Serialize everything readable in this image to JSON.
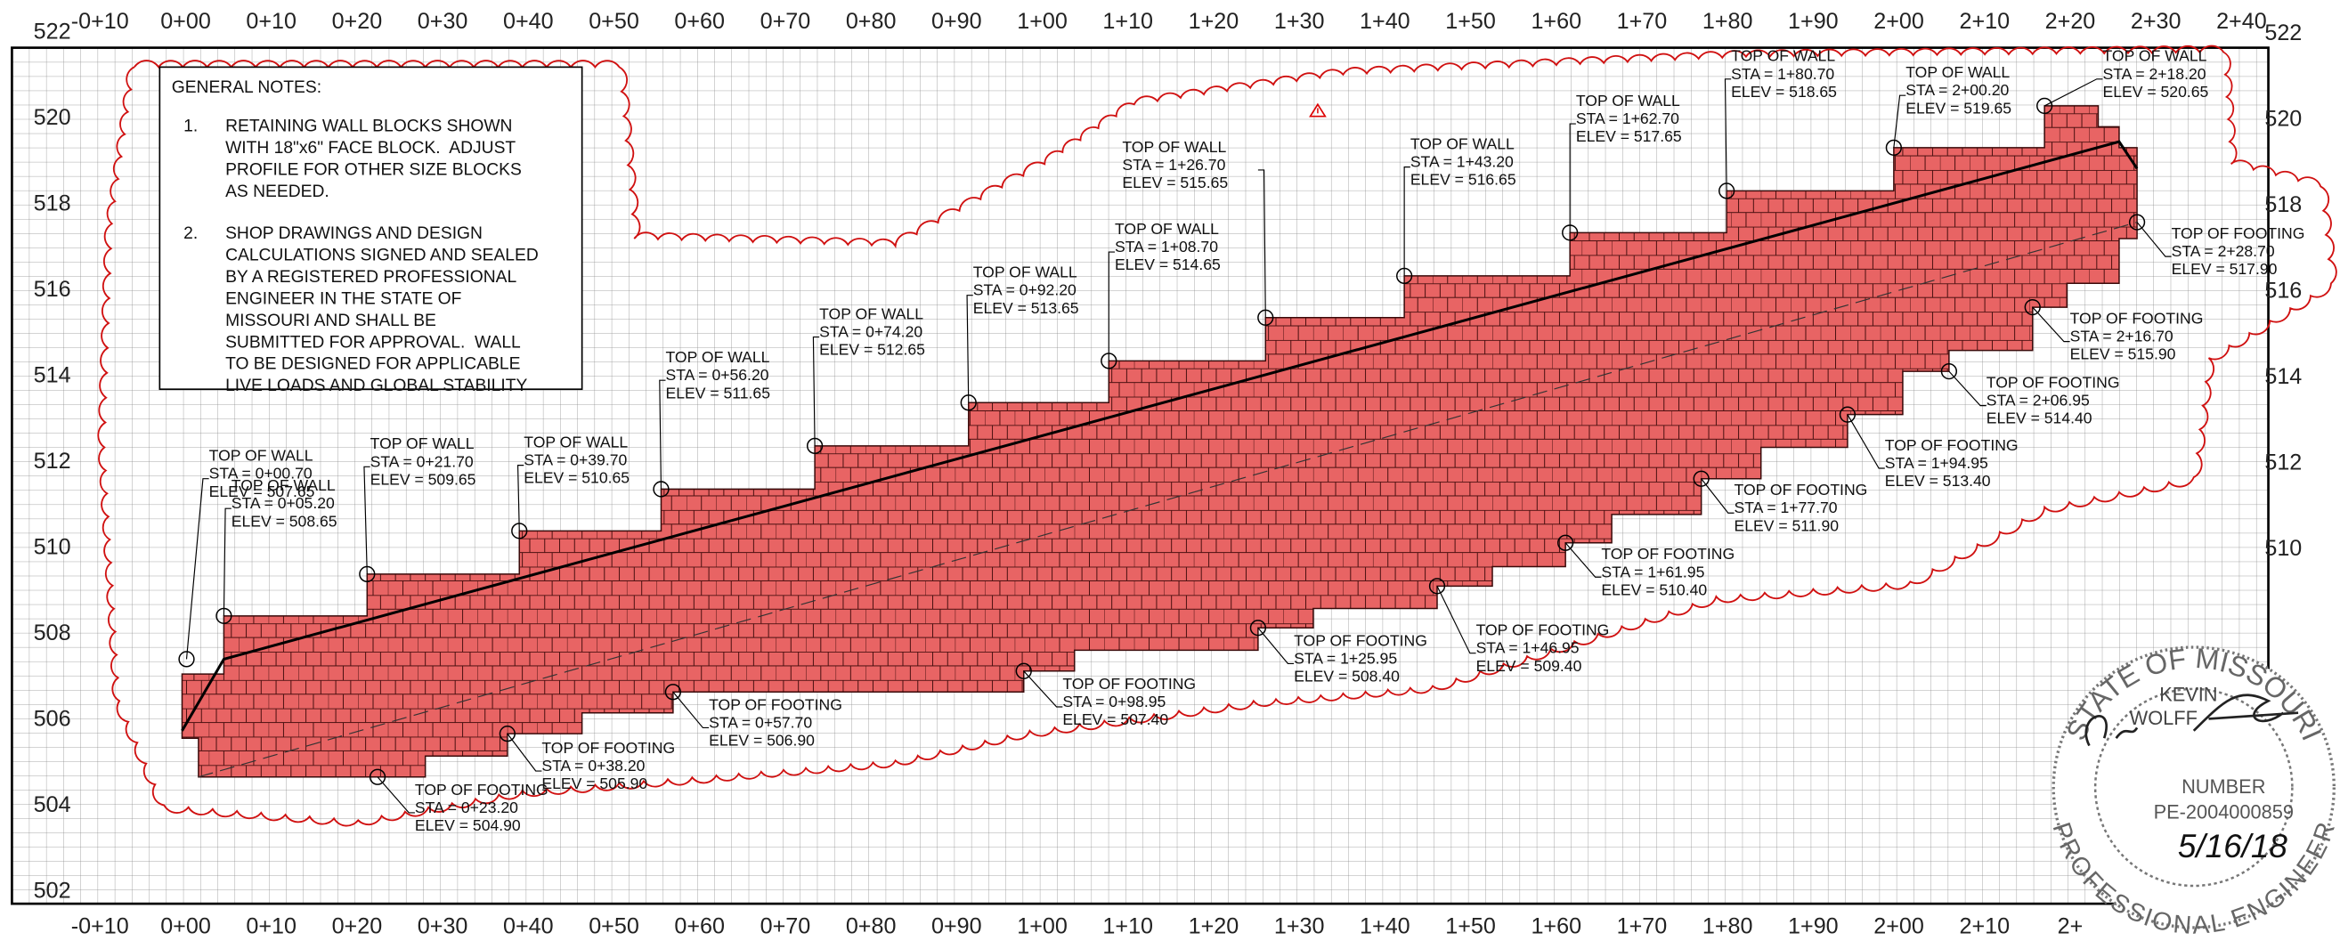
{
  "axes": {
    "stations_top": [
      "-0+10",
      "0+00",
      "0+10",
      "0+20",
      "0+30",
      "0+40",
      "0+50",
      "0+60",
      "0+70",
      "0+80",
      "0+90",
      "1+00",
      "1+10",
      "1+20",
      "1+30",
      "1+40",
      "1+50",
      "1+60",
      "1+70",
      "1+80",
      "1+90",
      "2+00",
      "2+10",
      "2+20",
      "2+30",
      "2+40"
    ],
    "stations_bottom": [
      "-0+10",
      "0+00",
      "0+10",
      "0+20",
      "0+30",
      "0+40",
      "0+50",
      "0+60",
      "0+70",
      "0+80",
      "0+90",
      "1+00",
      "1+10",
      "1+20",
      "1+30",
      "1+40",
      "1+50",
      "1+60",
      "1+70",
      "1+80",
      "1+90",
      "2+00",
      "2+10",
      "2+"
    ],
    "elevations_left": [
      "522",
      "520",
      "518",
      "516",
      "514",
      "512",
      "510",
      "508",
      "506",
      "504",
      "502"
    ],
    "elevations_right": [
      "522",
      "520",
      "518",
      "516",
      "514",
      "512",
      "510"
    ]
  },
  "general_notes": {
    "title": "GENERAL NOTES:",
    "notes": [
      {
        "number": "1.",
        "lines": [
          "RETAINING WALL BLOCKS SHOWN",
          "WITH 18\"x6\" FACE BLOCK.  ADJUST",
          "PROFILE FOR OTHER SIZE BLOCKS",
          "AS NEEDED."
        ]
      },
      {
        "number": "2.",
        "lines": [
          "SHOP DRAWINGS AND DESIGN",
          "CALCULATIONS SIGNED AND SEALED",
          "BY A REGISTERED PROFESSIONAL",
          "ENGINEER IN THE STATE OF",
          "MISSOURI AND SHALL BE",
          "SUBMITTED FOR APPROVAL.  WALL",
          "TO BE DESIGNED FOR APPLICABLE",
          "LIVE LOADS AND GLOBAL STABILITY"
        ]
      }
    ]
  },
  "top_of_wall": [
    {
      "title": "TOP OF WALL",
      "station": "STA = 0+00.70",
      "elevation": "ELEV = 507.65"
    },
    {
      "title": "TOP OF WALL",
      "station": "STA = 0+05.20",
      "elevation": "ELEV = 508.65"
    },
    {
      "title": "TOP OF WALL",
      "station": "STA = 0+21.70",
      "elevation": "ELEV = 509.65"
    },
    {
      "title": "TOP OF WALL",
      "station": "STA = 0+39.70",
      "elevation": "ELEV = 510.65"
    },
    {
      "title": "TOP OF WALL",
      "station": "STA = 0+56.20",
      "elevation": "ELEV = 511.65"
    },
    {
      "title": "TOP OF WALL",
      "station": "STA = 0+74.20",
      "elevation": "ELEV = 512.65"
    },
    {
      "title": "TOP OF WALL",
      "station": "STA = 0+92.20",
      "elevation": "ELEV = 513.65"
    },
    {
      "title": "TOP OF WALL",
      "station": "STA = 1+08.70",
      "elevation": "ELEV = 514.65"
    },
    {
      "title": "TOP OF WALL",
      "station": "STA = 1+26.70",
      "elevation": "ELEV = 515.65"
    },
    {
      "title": "TOP OF WALL",
      "station": "STA = 1+43.20",
      "elevation": "ELEV = 516.65"
    },
    {
      "title": "TOP OF WALL",
      "station": "STA = 1+62.70",
      "elevation": "ELEV = 517.65"
    },
    {
      "title": "TOP OF WALL",
      "station": "STA = 1+80.70",
      "elevation": "ELEV = 518.65"
    },
    {
      "title": "TOP OF WALL",
      "station": "STA = 2+00.20",
      "elevation": "ELEV = 519.65"
    },
    {
      "title": "TOP OF WALL",
      "station": "STA = 2+18.20",
      "elevation": "ELEV = 520.65"
    }
  ],
  "top_of_footing": [
    {
      "title": "TOP OF FOOTING",
      "station": "STA = 0+23.20",
      "elevation": "ELEV = 504.90"
    },
    {
      "title": "TOP OF FOOTING",
      "station": "STA = 0+38.20",
      "elevation": "ELEV = 505.90"
    },
    {
      "title": "TOP OF FOOTING",
      "station": "STA = 0+57.70",
      "elevation": "ELEV = 506.90"
    },
    {
      "title": "TOP OF FOOTING",
      "station": "STA = 0+98.95",
      "elevation": "ELEV = 507.40"
    },
    {
      "title": "TOP OF FOOTING",
      "station": "STA = 1+25.95",
      "elevation": "ELEV = 508.40"
    },
    {
      "title": "TOP OF FOOTING",
      "station": "STA = 1+46.95",
      "elevation": "ELEV = 509.40"
    },
    {
      "title": "TOP OF FOOTING",
      "station": "STA = 1+61.95",
      "elevation": "ELEV = 510.40"
    },
    {
      "title": "TOP OF FOOTING",
      "station": "STA = 1+77.70",
      "elevation": "ELEV = 511.90"
    },
    {
      "title": "TOP OF FOOTING",
      "station": "STA = 1+94.95",
      "elevation": "ELEV = 513.40"
    },
    {
      "title": "TOP OF FOOTING",
      "station": "STA = 2+06.95",
      "elevation": "ELEV = 514.40"
    },
    {
      "title": "TOP OF FOOTING",
      "station": "STA = 2+16.70",
      "elevation": "ELEV = 515.90"
    },
    {
      "title": "TOP OF FOOTING",
      "station": "STA = 2+28.70",
      "elevation": "ELEV = 517.90"
    }
  ],
  "seal": {
    "state": "STATE OF MISSOURI",
    "name_first": "KEVIN",
    "name_last": "WOLFF",
    "number_label": "NUMBER",
    "number": "PE-2004000859",
    "date": "5/16/18",
    "profession": "PROFESSIONAL ENGINEER"
  }
}
